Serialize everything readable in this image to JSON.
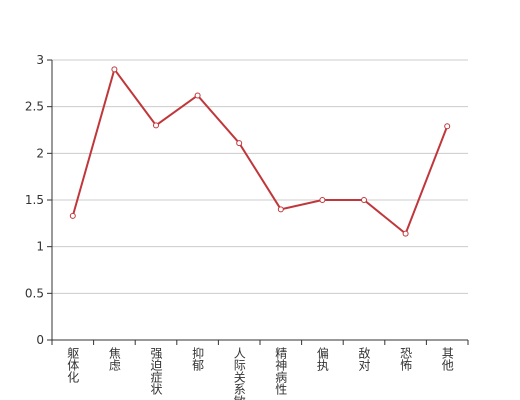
{
  "chart_data": {
    "type": "line",
    "categories": [
      "躯体化",
      "焦虑",
      "强迫症状",
      "抑郁",
      "人际关系敏感",
      "精神病性",
      "偏执",
      "敌对",
      "恐怖",
      "其他"
    ],
    "values": [
      1.33,
      2.9,
      2.3,
      2.62,
      2.11,
      1.4,
      1.5,
      1.5,
      1.14,
      2.29
    ],
    "color": "#c0373b",
    "ylim": [
      0,
      3
    ],
    "yticks": [
      0,
      0.5,
      1,
      1.5,
      2,
      2.5,
      3
    ],
    "grid": true
  }
}
